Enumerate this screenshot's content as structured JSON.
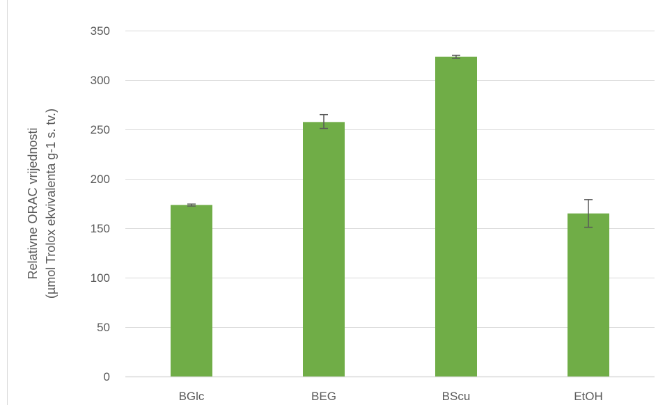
{
  "chart_data": {
    "type": "bar",
    "title": "",
    "xlabel": "",
    "ylabel_lines": [
      "Relativne ORAC vrijednosti",
      "(µmol Trolox ekvivalenta g-1 s. tv.)"
    ],
    "categories": [
      "BGlc",
      "BEG",
      "BScu",
      "EtOH"
    ],
    "values": [
      173.5,
      257.5,
      323.5,
      165
    ],
    "error_low": [
      172.5,
      251,
      322,
      151
    ],
    "error_high": [
      174.5,
      265,
      325,
      179
    ],
    "ylim": [
      0,
      350
    ],
    "yticks": [
      "0",
      "50",
      "100",
      "150",
      "200",
      "250",
      "300",
      "350"
    ],
    "grid": true,
    "legend": false,
    "colors": {
      "bar": "#70ad47",
      "grid": "#d9d9d9",
      "error_bar": "#595959",
      "text": "#595959"
    }
  }
}
